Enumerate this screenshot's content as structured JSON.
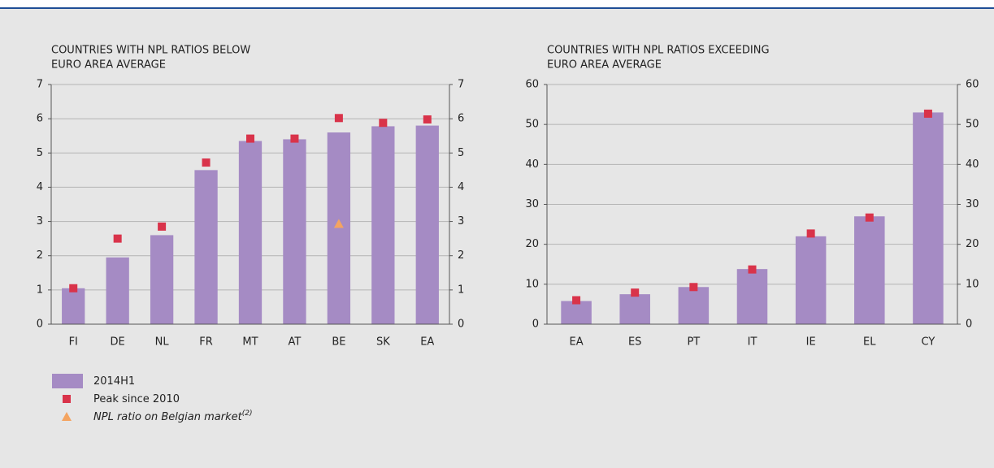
{
  "chart_data": [
    {
      "type": "bar",
      "title": [
        "COUNTRIES WITH NPL RATIOS BELOW",
        "EURO AREA AVERAGE"
      ],
      "categories": [
        "FI",
        "DE",
        "NL",
        "FR",
        "MT",
        "AT",
        "BE",
        "SK",
        "EA"
      ],
      "series": [
        {
          "name": "2014H1",
          "color": "#a58bc4",
          "marker": "bar",
          "values": [
            1.05,
            1.95,
            2.6,
            4.5,
            5.35,
            5.4,
            5.6,
            5.78,
            5.8
          ]
        },
        {
          "name": "Peak since 2010",
          "color": "#d9334a",
          "marker": "square",
          "values": [
            1.05,
            2.5,
            2.85,
            4.72,
            5.42,
            5.42,
            6.02,
            5.88,
            5.98
          ]
        },
        {
          "name": "NPL ratio on Belgian market",
          "name_note": "(2)",
          "color": "#f4a460",
          "marker": "triangle",
          "values": [
            null,
            null,
            null,
            null,
            null,
            null,
            2.93,
            null,
            null
          ]
        }
      ],
      "ylim": [
        0,
        7
      ],
      "yticks": [
        0,
        1,
        2,
        3,
        4,
        5,
        6,
        7
      ],
      "grid": true
    },
    {
      "type": "bar",
      "title": [
        "COUNTRIES WITH NPL RATIOS EXCEEDING",
        "EURO AREA AVERAGE"
      ],
      "categories": [
        "EA",
        "ES",
        "PT",
        "IT",
        "IE",
        "EL",
        "CY"
      ],
      "series": [
        {
          "color": "#a58bc4",
          "marker": "bar",
          "values": [
            5.8,
            7.5,
            9.3,
            13.8,
            22,
            27,
            53
          ]
        },
        {
          "color": "#d9334a",
          "marker": "square",
          "values": [
            6,
            7.9,
            9.3,
            13.7,
            22.7,
            26.7,
            52.7
          ]
        }
      ],
      "ylim": [
        0,
        60
      ],
      "yticks": [
        0,
        10,
        20,
        30,
        40,
        50,
        60
      ],
      "grid": true
    }
  ]
}
